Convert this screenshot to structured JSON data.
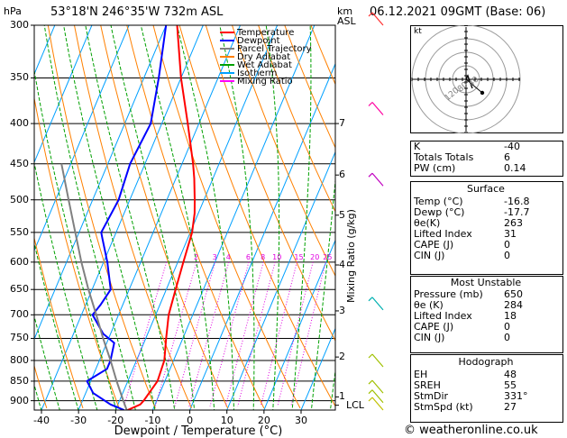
{
  "header": {
    "hpa_label": "hPa",
    "location": "53°18'N  246°35'W  732m  ASL",
    "km_label": "km",
    "asl_label": "ASL",
    "datetime": "06.12.2021  09GMT  (Base: 06)"
  },
  "legend": [
    {
      "label": "Temperature",
      "color": "#ff0000"
    },
    {
      "label": "Dewpoint",
      "color": "#0000ff"
    },
    {
      "label": "Parcel Trajectory",
      "color": "#808080"
    },
    {
      "label": "Dry Adiabat",
      "color": "#ff8000"
    },
    {
      "label": "Wet Adiabat",
      "color": "#00a000"
    },
    {
      "label": "Isotherm",
      "color": "#00a0ff"
    },
    {
      "label": "Mixing Ratio",
      "color": "#ff00ff"
    }
  ],
  "chart_data": {
    "type": "skew-t",
    "title": "53°18'N  246°35'W  732m  ASL",
    "xlabel": "Dewpoint / Temperature (°C)",
    "ylabel": "hPa",
    "y2label": "Mixing Ratio (g/kg)",
    "pressure_levels": [
      300,
      350,
      400,
      450,
      500,
      550,
      600,
      650,
      700,
      750,
      800,
      850,
      900
    ],
    "pressure_tick_labels": [
      "300",
      "350",
      "400",
      "450",
      "500",
      "550",
      "600",
      "650",
      "700",
      "750",
      "800",
      "850",
      "900"
    ],
    "temp_ticks": [
      -40,
      -30,
      -20,
      -10,
      0,
      10,
      20,
      30
    ],
    "temp_tick_labels": [
      "-40",
      "-30",
      "-20",
      "-10",
      "0",
      "10",
      "20",
      "30"
    ],
    "xlim": [
      -40,
      38
    ],
    "ylim": [
      925,
      300
    ],
    "altitude_km": [
      {
        "label": "7",
        "pressure": 400
      },
      {
        "label": "6",
        "pressure": 465
      },
      {
        "label": "5",
        "pressure": 523
      },
      {
        "label": "4",
        "pressure": 605
      },
      {
        "label": "3",
        "pressure": 692
      },
      {
        "label": "2",
        "pressure": 792
      },
      {
        "label": "1",
        "pressure": 890
      },
      {
        "label": "LCL",
        "pressure": 912
      }
    ],
    "mixing_ratio_labels": [
      {
        "label": "2",
        "value": 2
      },
      {
        "label": "3",
        "value": 3
      },
      {
        "label": "4",
        "value": 4
      },
      {
        "label": "6",
        "value": 6
      },
      {
        "label": "8",
        "value": 8
      },
      {
        "label": "10",
        "value": 10
      },
      {
        "label": "15",
        "value": 15
      },
      {
        "label": "20",
        "value": 20
      },
      {
        "label": "25",
        "value": 25
      }
    ],
    "series": [
      {
        "name": "Temperature",
        "color": "#ff0000",
        "points": [
          [
            925,
            -16.8
          ],
          [
            910,
            -14
          ],
          [
            900,
            -13.5
          ],
          [
            850,
            -12
          ],
          [
            800,
            -12.5
          ],
          [
            750,
            -14.5
          ],
          [
            700,
            -16.5
          ],
          [
            650,
            -17.5
          ],
          [
            600,
            -18.5
          ],
          [
            550,
            -19.5
          ],
          [
            520,
            -21
          ],
          [
            500,
            -22.5
          ],
          [
            470,
            -25
          ],
          [
            450,
            -27
          ],
          [
            400,
            -33
          ],
          [
            350,
            -40
          ],
          [
            300,
            -47
          ]
        ]
      },
      {
        "name": "Dewpoint",
        "color": "#0000ff",
        "points": [
          [
            925,
            -17.7
          ],
          [
            910,
            -22
          ],
          [
            880,
            -28
          ],
          [
            850,
            -31
          ],
          [
            820,
            -27
          ],
          [
            800,
            -27
          ],
          [
            760,
            -28
          ],
          [
            740,
            -32
          ],
          [
            700,
            -37
          ],
          [
            680,
            -36
          ],
          [
            650,
            -35
          ],
          [
            600,
            -39
          ],
          [
            560,
            -43
          ],
          [
            550,
            -44
          ],
          [
            500,
            -43
          ],
          [
            450,
            -44
          ],
          [
            400,
            -43
          ],
          [
            350,
            -46
          ],
          [
            300,
            -50
          ]
        ]
      },
      {
        "name": "Parcel Trajectory",
        "color": "#808080",
        "points": [
          [
            925,
            -17
          ],
          [
            900,
            -19
          ],
          [
            850,
            -23
          ],
          [
            800,
            -27
          ],
          [
            750,
            -31.5
          ],
          [
            700,
            -36
          ],
          [
            650,
            -41
          ],
          [
            600,
            -46
          ],
          [
            550,
            -51
          ],
          [
            500,
            -56.5
          ],
          [
            450,
            -62.5
          ]
        ]
      }
    ]
  },
  "hodograph": {
    "unit_label": "kt",
    "ring_labels": [
      "40",
      "80",
      "120"
    ]
  },
  "indices": {
    "rows": [
      {
        "label": "K",
        "value": "-40"
      },
      {
        "label": "Totals Totals",
        "value": "6"
      },
      {
        "label": "PW (cm)",
        "value": "0.14"
      }
    ]
  },
  "surface": {
    "title": "Surface",
    "rows": [
      {
        "label": "Temp (°C)",
        "value": "-16.8"
      },
      {
        "label": "Dewp (°C)",
        "value": "-17.7"
      },
      {
        "label": "θe(K)",
        "value": "263"
      },
      {
        "label": "Lifted Index",
        "value": "31"
      },
      {
        "label": "CAPE (J)",
        "value": "0"
      },
      {
        "label": "CIN (J)",
        "value": "0"
      }
    ]
  },
  "most_unstable": {
    "title": "Most Unstable",
    "rows": [
      {
        "label": "Pressure (mb)",
        "value": "650"
      },
      {
        "label": "θe (K)",
        "value": "284"
      },
      {
        "label": "Lifted Index",
        "value": "18"
      },
      {
        "label": "CAPE (J)",
        "value": "0"
      },
      {
        "label": "CIN (J)",
        "value": "0"
      }
    ]
  },
  "hodograph_table": {
    "title": "Hodograph",
    "rows": [
      {
        "label": "EH",
        "value": "48"
      },
      {
        "label": "SREH",
        "value": "55"
      },
      {
        "label": "StmDir",
        "value": "331°"
      },
      {
        "label": "StmSpd (kt)",
        "value": "27"
      }
    ]
  },
  "credit": "© weatheronline.co.uk"
}
